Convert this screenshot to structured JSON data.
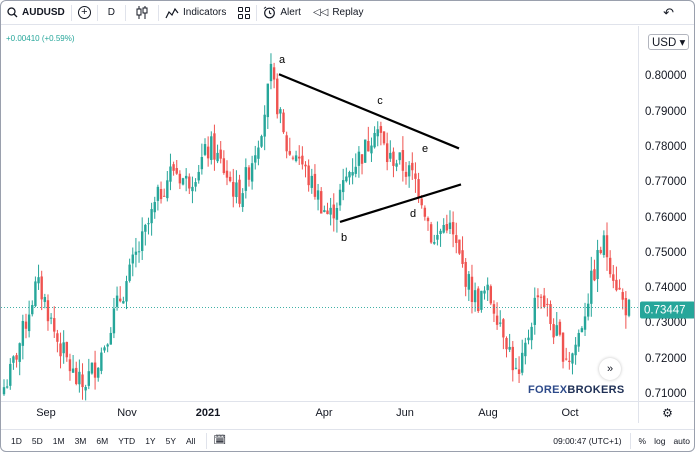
{
  "toolbar": {
    "symbol": "AUDUSD",
    "interval": "D",
    "indicators_label": "Indicators",
    "alert_label": "Alert",
    "replay_label": "Replay"
  },
  "chart_header": {
    "change_text": "+0.00410 (+0.59%)"
  },
  "price_axis": {
    "currency": "USD",
    "labels": [
      "0.80000",
      "0.79000",
      "0.78000",
      "0.77000",
      "0.76000",
      "0.75000",
      "0.74000",
      "0.73000",
      "0.72000",
      "0.71000"
    ],
    "current_price": "0.73447",
    "current_price_color": "#26a69a"
  },
  "time_axis": {
    "labels": [
      "Sep",
      "Nov",
      "2021",
      "Apr",
      "Jun",
      "Aug",
      "Oct"
    ]
  },
  "pattern_labels": [
    "a",
    "b",
    "c",
    "d",
    "e"
  ],
  "watermark": {
    "text_a": "FOREX",
    "text_b": "BROKERS"
  },
  "bottombar": {
    "ranges": [
      "1D",
      "5D",
      "1M",
      "3M",
      "6M",
      "YTD",
      "1Y",
      "5Y",
      "All"
    ],
    "clock": "09:00:47 (UTC+1)",
    "percent_label": "%",
    "log_label": "log",
    "auto_label": "auto"
  },
  "colors": {
    "up": "#26a69a",
    "down": "#ef5350",
    "trendline": "#000000"
  },
  "chart_data": {
    "type": "candlestick",
    "title": "",
    "ylim": [
      0.708,
      0.81
    ],
    "y_ticks": [
      0.8,
      0.79,
      0.78,
      0.77,
      0.76,
      0.75,
      0.74,
      0.73,
      0.72,
      0.71
    ],
    "x_ticks": [
      "Sep",
      "Nov",
      "2021",
      "Apr",
      "Jun",
      "Aug",
      "Oct"
    ],
    "close_profile": [
      0.712,
      0.716,
      0.722,
      0.728,
      0.735,
      0.741,
      0.738,
      0.732,
      0.726,
      0.722,
      0.718,
      0.714,
      0.712,
      0.715,
      0.718,
      0.722,
      0.728,
      0.733,
      0.738,
      0.742,
      0.748,
      0.752,
      0.757,
      0.762,
      0.767,
      0.771,
      0.774,
      0.772,
      0.77,
      0.772,
      0.775,
      0.778,
      0.78,
      0.776,
      0.773,
      0.769,
      0.766,
      0.77,
      0.776,
      0.782,
      0.79,
      0.8,
      0.792,
      0.782,
      0.777,
      0.779,
      0.774,
      0.77,
      0.767,
      0.763,
      0.76,
      0.764,
      0.768,
      0.773,
      0.776,
      0.778,
      0.781,
      0.787,
      0.782,
      0.776,
      0.777,
      0.775,
      0.773,
      0.771,
      0.767,
      0.76,
      0.752,
      0.756,
      0.759,
      0.754,
      0.748,
      0.743,
      0.738,
      0.736,
      0.739,
      0.736,
      0.732,
      0.727,
      0.72,
      0.713,
      0.722,
      0.731,
      0.74,
      0.736,
      0.73,
      0.726,
      0.722,
      0.72,
      0.725,
      0.732,
      0.74,
      0.747,
      0.753,
      0.748,
      0.742,
      0.736,
      0.734
    ],
    "current_price": 0.73447,
    "trendlines": [
      {
        "from": "a",
        "to": "past e",
        "from_price": 0.8005,
        "to_price": 0.7795
      },
      {
        "from": "b",
        "to": "past d",
        "from_price": 0.7587,
        "to_price": 0.7693
      }
    ],
    "grid": false,
    "legend": "none"
  }
}
